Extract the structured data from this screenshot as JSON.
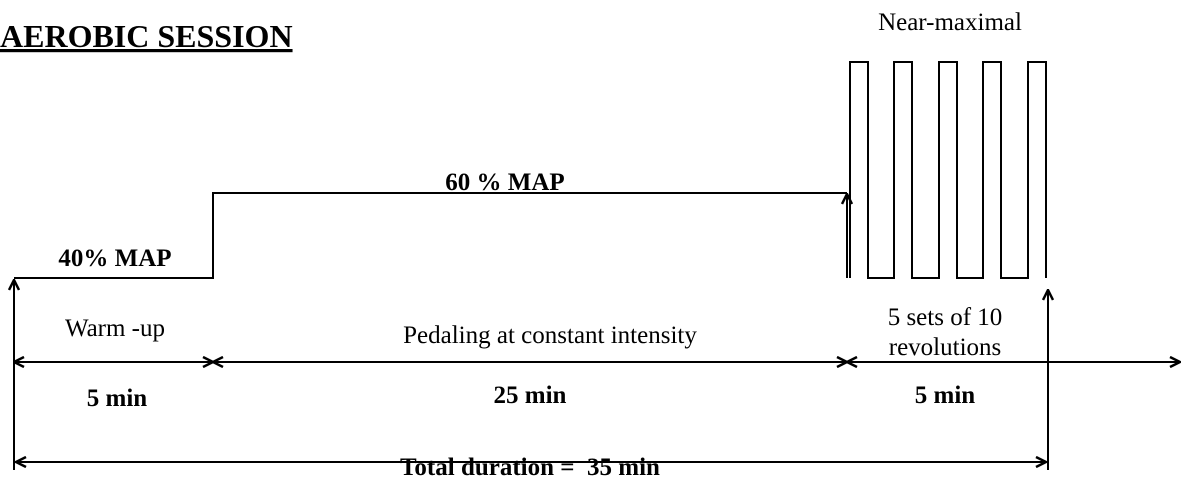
{
  "header": {
    "title": "AEROBIC SESSION"
  },
  "labels": {
    "near_maximal": "Near-maximal",
    "high_intensity": "60 % MAP",
    "low_intensity": "40% MAP"
  },
  "phases": [
    {
      "name": "Warm -up",
      "duration": "5 min"
    },
    {
      "name": "Pedaling at constant intensity",
      "duration": "25 min"
    },
    {
      "name_lines": [
        "5 sets of 10",
        "revolutions"
      ],
      "duration": "5 min"
    }
  ],
  "total": "Total duration =  35 min"
}
